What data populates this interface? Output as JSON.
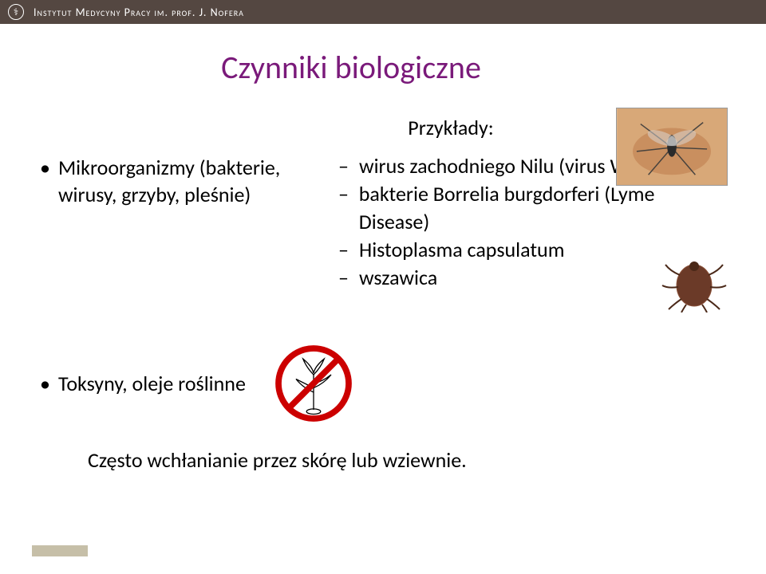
{
  "header": {
    "institute_name": "Instytut Medycyny Pracy im. prof. J. Nofera",
    "logo_glyph": "⚕"
  },
  "title": {
    "text": "Czynniki biologiczne",
    "color": "#7a1a7a"
  },
  "left_column": {
    "bullet": "•",
    "text": "Mikroorganizmy (bakterie, wirusy, grzyby, pleśnie)"
  },
  "right_column": {
    "examples_label": "Przykłady:",
    "items": [
      "wirus zachodniego Nilu (virus West Nile)",
      "bakterie Borrelia burgdorferi (Lyme Disease)",
      "Histoplasma capsulatum",
      "wszawica"
    ],
    "dash": "–"
  },
  "toxins": {
    "bullet": "•",
    "text": "Toksyny, oleje roślinne"
  },
  "absorption_note": "Często wchłanianie przez skórę lub wziewnie.",
  "images": {
    "mosquito_alt": "mosquito-photo",
    "tick_alt": "tick-photo",
    "no_plant_alt": "no-plant-symbol"
  },
  "colors": {
    "header_bg": "#544741",
    "title": "#7a1a7a",
    "text": "#000000",
    "footer_accent": "#c6bfa8",
    "prohibition_red": "#cc0000"
  }
}
